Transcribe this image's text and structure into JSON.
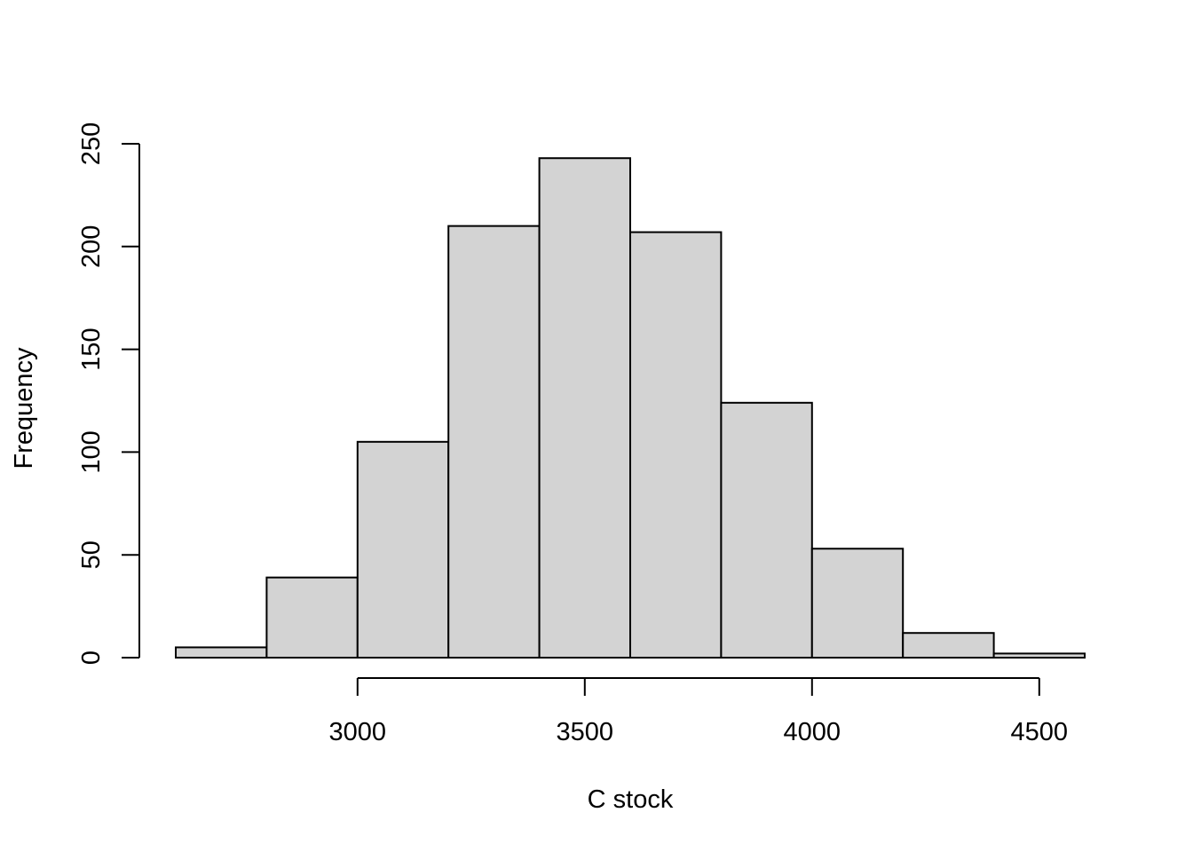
{
  "chart_data": {
    "type": "bar",
    "title": "",
    "xlabel": "C stock",
    "ylabel": "Frequency",
    "bin_edges": [
      2600,
      2800,
      3000,
      3200,
      3400,
      3600,
      3800,
      4000,
      4200,
      4400,
      4600
    ],
    "values": [
      5,
      39,
      105,
      210,
      243,
      207,
      124,
      53,
      12,
      2
    ],
    "xlim": [
      2600,
      4600
    ],
    "ylim": [
      0,
      250
    ],
    "x_ticks": [
      3000,
      3500,
      4000,
      4500
    ],
    "y_ticks": [
      0,
      50,
      100,
      150,
      200,
      250
    ],
    "bar_fill": "#d3d3d3",
    "bar_stroke": "#000000",
    "grid": false,
    "legend": "none"
  }
}
